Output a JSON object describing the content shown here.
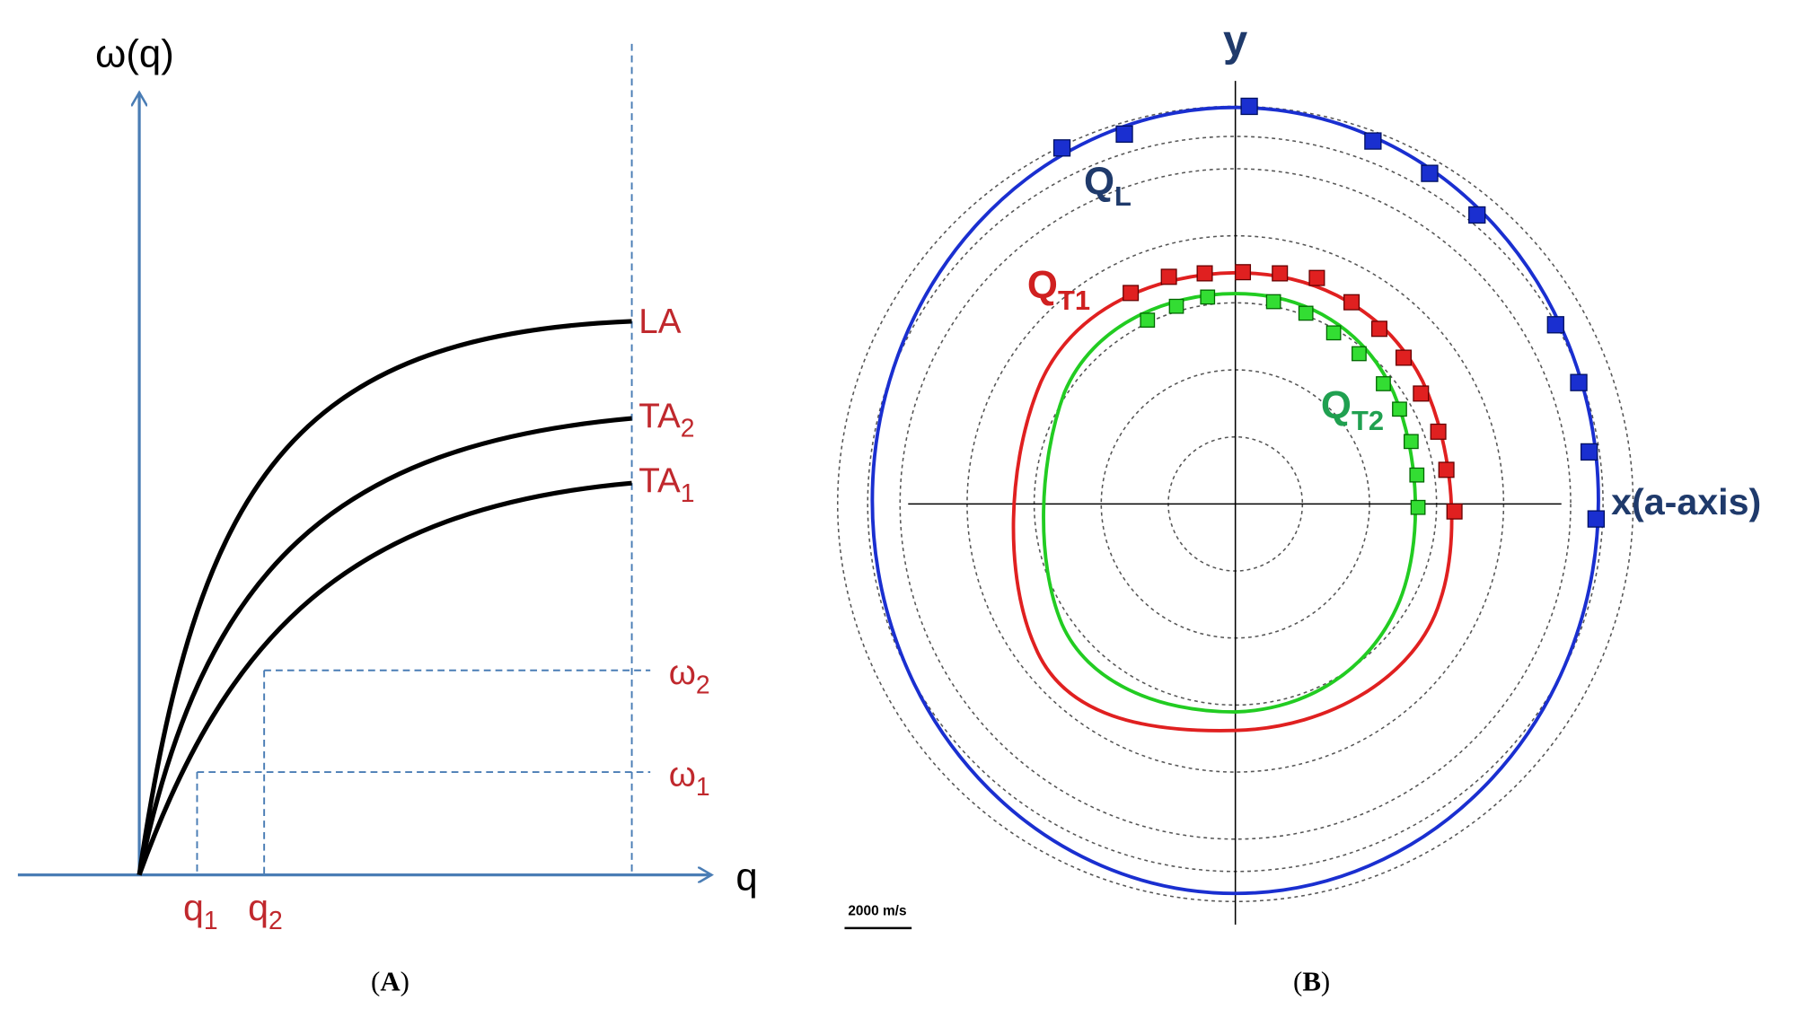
{
  "panel_a": {
    "y_axis_label": "ω(q)",
    "x_axis_label": "q",
    "curve_labels": [
      {
        "base": "LA",
        "sub": ""
      },
      {
        "base": "TA",
        "sub": "2"
      },
      {
        "base": "TA",
        "sub": "1"
      }
    ],
    "omega_labels": [
      {
        "base": "ω",
        "sub": "2"
      },
      {
        "base": "ω",
        "sub": "1"
      }
    ],
    "q_labels": [
      {
        "base": "q",
        "sub": "1"
      },
      {
        "base": "q",
        "sub": "2"
      }
    ],
    "caption": {
      "open": "(",
      "letter": "A",
      "close": ")"
    }
  },
  "panel_b": {
    "y_label": "y",
    "x_label": "x(a-axis)",
    "mode_labels": [
      {
        "base": "Q",
        "sub": "L"
      },
      {
        "base": "Q",
        "sub": "T1"
      },
      {
        "base": "Q",
        "sub": "T2"
      }
    ],
    "scale_bar": "2000 m/s",
    "caption": {
      "open": "(",
      "letter": "B",
      "close": ")"
    }
  }
}
